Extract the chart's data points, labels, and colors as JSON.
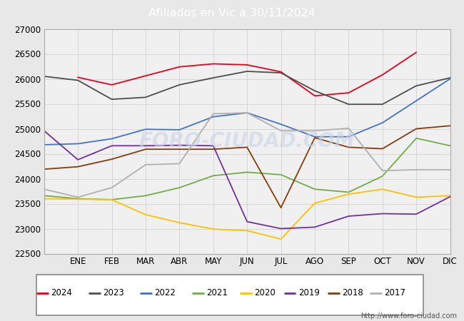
{
  "title": "Afiliados en Vic a 30/11/2024",
  "title_bg_color": "#4a8fd4",
  "title_text_color": "white",
  "ylim": [
    22500,
    27000
  ],
  "yticks": [
    22500,
    23000,
    23500,
    24000,
    24500,
    25000,
    25500,
    26000,
    26500,
    27000
  ],
  "months": [
    "",
    "ENE",
    "FEB",
    "MAR",
    "ABR",
    "MAY",
    "JUN",
    "JUL",
    "AGO",
    "SEP",
    "OCT",
    "NOV",
    "DIC"
  ],
  "series": {
    "2024": {
      "color": "#e8001c",
      "data": [
        [
          1,
          26030
        ],
        [
          2,
          25880
        ],
        [
          3,
          26060
        ],
        [
          4,
          26240
        ],
        [
          5,
          26300
        ],
        [
          6,
          26280
        ],
        [
          7,
          26140
        ],
        [
          8,
          25660
        ],
        [
          9,
          25720
        ],
        [
          10,
          26080
        ],
        [
          11,
          26530
        ]
      ]
    },
    "2023": {
      "color": "#4d4d4d",
      "data": [
        [
          0,
          26050
        ],
        [
          1,
          25970
        ],
        [
          2,
          25590
        ],
        [
          3,
          25630
        ],
        [
          4,
          25880
        ],
        [
          5,
          26020
        ],
        [
          6,
          26150
        ],
        [
          7,
          26120
        ],
        [
          8,
          25760
        ],
        [
          9,
          25490
        ],
        [
          10,
          25490
        ],
        [
          11,
          25860
        ],
        [
          12,
          26020
        ]
      ]
    },
    "2022": {
      "color": "#4472c4",
      "data": [
        [
          0,
          24680
        ],
        [
          1,
          24700
        ],
        [
          2,
          24800
        ],
        [
          3,
          24990
        ],
        [
          4,
          24980
        ],
        [
          5,
          25240
        ],
        [
          6,
          25320
        ],
        [
          7,
          25090
        ],
        [
          8,
          24840
        ],
        [
          9,
          24840
        ],
        [
          10,
          25120
        ],
        [
          11,
          25560
        ],
        [
          12,
          26000
        ]
      ]
    },
    "2021": {
      "color": "#70ad47",
      "data": [
        [
          0,
          23660
        ],
        [
          1,
          23600
        ],
        [
          2,
          23580
        ],
        [
          3,
          23660
        ],
        [
          4,
          23820
        ],
        [
          5,
          24060
        ],
        [
          6,
          24130
        ],
        [
          7,
          24080
        ],
        [
          8,
          23790
        ],
        [
          9,
          23730
        ],
        [
          10,
          24050
        ],
        [
          11,
          24810
        ],
        [
          12,
          24660
        ]
      ]
    },
    "2020": {
      "color": "#ffc000",
      "data": [
        [
          0,
          23600
        ],
        [
          1,
          23590
        ],
        [
          2,
          23580
        ],
        [
          3,
          23280
        ],
        [
          4,
          23120
        ],
        [
          5,
          22990
        ],
        [
          6,
          22960
        ],
        [
          7,
          22790
        ],
        [
          8,
          23510
        ],
        [
          9,
          23690
        ],
        [
          10,
          23790
        ],
        [
          11,
          23630
        ],
        [
          12,
          23660
        ]
      ]
    },
    "2019": {
      "color": "#7030a0",
      "data": [
        [
          0,
          24960
        ],
        [
          1,
          24380
        ],
        [
          2,
          24660
        ],
        [
          3,
          24660
        ],
        [
          4,
          24670
        ],
        [
          5,
          24660
        ],
        [
          6,
          23140
        ],
        [
          7,
          23000
        ],
        [
          8,
          23030
        ],
        [
          9,
          23250
        ],
        [
          10,
          23300
        ],
        [
          11,
          23290
        ],
        [
          12,
          23640
        ]
      ]
    },
    "2018": {
      "color": "#843c0c",
      "data": [
        [
          0,
          24190
        ],
        [
          1,
          24240
        ],
        [
          2,
          24390
        ],
        [
          3,
          24590
        ],
        [
          4,
          24590
        ],
        [
          5,
          24590
        ],
        [
          6,
          24630
        ],
        [
          7,
          23420
        ],
        [
          8,
          24820
        ],
        [
          9,
          24630
        ],
        [
          10,
          24600
        ],
        [
          11,
          25000
        ],
        [
          12,
          25060
        ]
      ]
    },
    "2017": {
      "color": "#b0b0b0",
      "data": [
        [
          0,
          23790
        ],
        [
          1,
          23630
        ],
        [
          2,
          23820
        ],
        [
          3,
          24280
        ],
        [
          4,
          24300
        ],
        [
          5,
          25300
        ],
        [
          6,
          25320
        ],
        [
          7,
          24960
        ],
        [
          8,
          24960
        ],
        [
          9,
          25010
        ],
        [
          10,
          24160
        ],
        [
          11,
          24180
        ],
        [
          12,
          24180
        ]
      ]
    }
  },
  "watermark": "FORO-CIUDAD.COM",
  "url": "http://www.foro-ciudad.com",
  "bg_color": "#e8e8e8",
  "plot_bg_color": "#f0f0f0"
}
